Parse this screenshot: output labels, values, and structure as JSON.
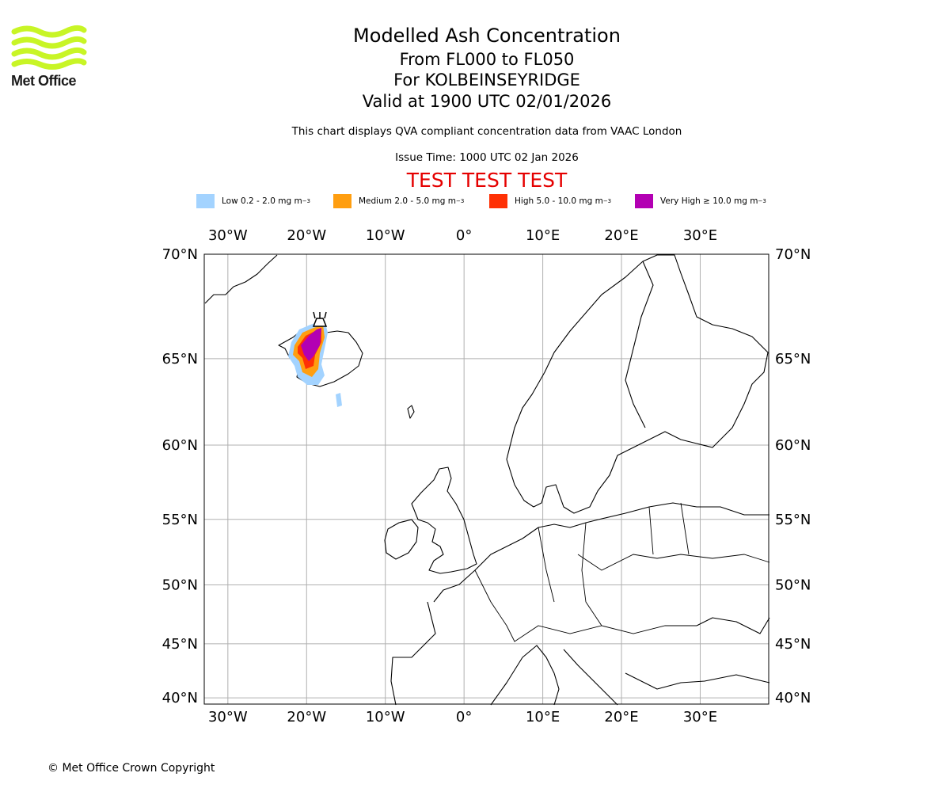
{
  "logo": {
    "brand": "Met Office"
  },
  "header": {
    "title": "Modelled Ash Concentration",
    "levels": "From FL000 to FL050",
    "location": "For KOLBEINSEYRIDGE",
    "valid": "Valid at 1900 UTC 02/01/2026",
    "description": "This chart displays QVA compliant concentration data from VAAC London",
    "issue_time": "Issue Time: 1000 UTC 02 Jan 2026",
    "test_banner": "TEST TEST TEST"
  },
  "legend": [
    {
      "label": "Low 0.2 - 2.0 mg m",
      "color": "#a3d3ff"
    },
    {
      "label": "Medium 2.0 - 5.0 mg m",
      "color": "#ff9e10"
    },
    {
      "label": "High 5.0 - 10.0 mg m",
      "color": "#ff3105"
    },
    {
      "label": "Very High ≥ 10.0 mg m",
      "color": "#b300b3"
    }
  ],
  "legend_unit_exp": "−3",
  "map": {
    "lon_ticks": [
      "30°W",
      "20°W",
      "10°W",
      "0°",
      "10°E",
      "20°E",
      "30°E"
    ],
    "lat_ticks": [
      "70°N",
      "65°N",
      "60°N",
      "55°N",
      "50°N",
      "45°N",
      "40°N"
    ],
    "lon_values": [
      -30,
      -20,
      -10,
      0,
      10,
      20,
      30
    ],
    "lat_values": [
      70,
      65,
      60,
      55,
      50,
      45,
      40
    ],
    "extent": {
      "lon_min": -33,
      "lon_max": 38.7,
      "lat_min": 39.4,
      "lat_max": 70
    },
    "volcano": {
      "name": "KOLBEINSEYRIDGE",
      "lon": -18.5,
      "lat": 66.7
    }
  },
  "footer": {
    "copyright": "© Met Office Crown Copyright"
  }
}
